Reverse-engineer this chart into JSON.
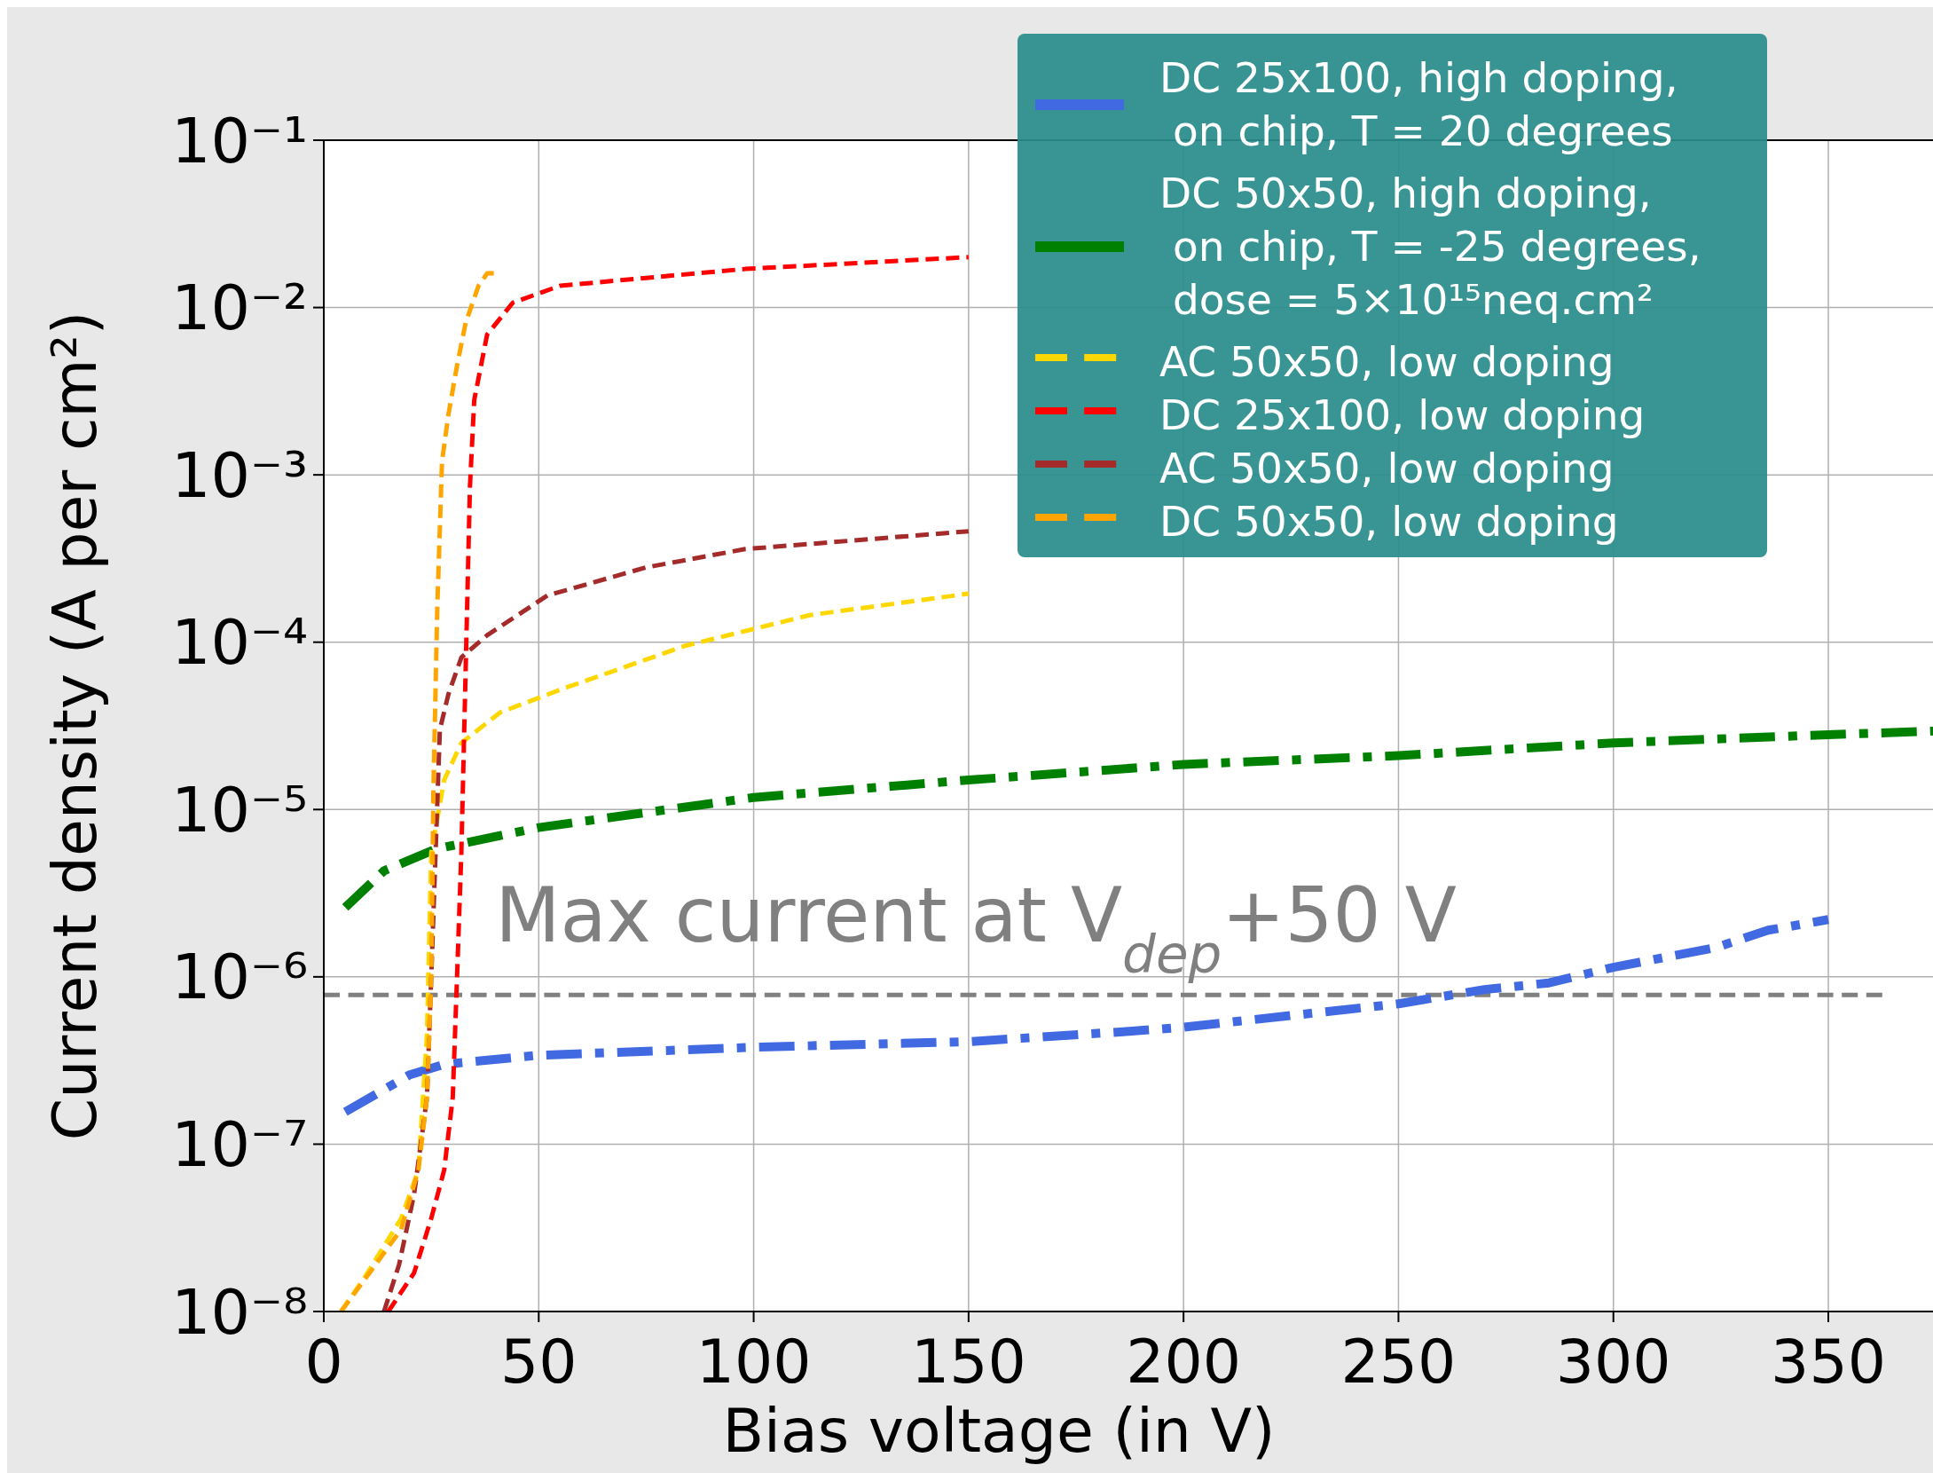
{
  "chart_data": {
    "type": "line",
    "xlabel": "Bias voltage (in V)",
    "ylabel": "Current density (A per cm²)",
    "log": "y",
    "grid": true,
    "legend": "top right",
    "xlim": [
      0,
      376
    ],
    "xticks": [
      0,
      50,
      100,
      150,
      200,
      250,
      300,
      350
    ],
    "ylim": [
      1e-08,
      0.1
    ],
    "yticks": [
      {
        "value": 1e-08,
        "label": "10⁻⁸"
      },
      {
        "value": 1e-07,
        "label": "10⁻⁷"
      },
      {
        "value": 1e-06,
        "label": "10⁻⁶"
      },
      {
        "value": 1e-05,
        "label": "10⁻⁵"
      },
      {
        "value": 0.0001,
        "label": "10⁻⁴"
      },
      {
        "value": 0.001,
        "label": "10⁻³"
      },
      {
        "value": 0.01,
        "label": "10⁻²"
      },
      {
        "value": 0.1,
        "label": "10⁻¹"
      }
    ],
    "ref_lines": [
      {
        "axis": "y",
        "value": 7.8e-07,
        "label": "Max current at V$_{dep}$+50 V",
        "color": "#808080",
        "line_style": "dashed"
      }
    ],
    "series": [
      {
        "name": "DC 25x100, high doping,\n on chip, T = 20 degrees",
        "color": "#4169e1",
        "line_style": "dashdot",
        "x": [
          5,
          20,
          28,
          50,
          101,
          150,
          186,
          200,
          250,
          270,
          285,
          300,
          324,
          336,
          350
        ],
        "values": [
          1.56e-07,
          2.6e-07,
          3e-07,
          3.4e-07,
          3.8e-07,
          4.1e-07,
          4.7e-07,
          5e-07,
          6.9e-07,
          8.4e-07,
          9.2e-07,
          1.14e-06,
          1.5e-06,
          1.9e-06,
          2.2e-06
        ]
      },
      {
        "name": "DC 50x50, high doping,\n on chip, T = -25 degrees,\n dose = 5×10¹⁵neq.cm²",
        "color": "#008000",
        "line_style": "dashdot",
        "x": [
          5,
          14,
          26,
          50,
          100,
          150,
          200,
          250,
          300,
          350,
          376
        ],
        "values": [
          2.6e-06,
          4.3e-06,
          5.8e-06,
          7.8e-06,
          1.18e-05,
          1.5e-05,
          1.86e-05,
          2.1e-05,
          2.5e-05,
          2.8e-05,
          2.95e-05
        ]
      },
      {
        "name": "AC 50x50, low doping",
        "color": "#ffd700",
        "line_style": "dashed",
        "x": [
          4,
          9.5,
          18,
          22,
          24,
          25,
          28,
          32,
          41,
          55,
          84,
          113,
          150
        ],
        "values": [
          1e-08,
          1.6e-08,
          3.6e-08,
          7e-08,
          4.5e-07,
          5.5e-06,
          1.5e-05,
          2.5e-05,
          3.8e-05,
          5.2e-05,
          9.5e-05,
          0.000145,
          0.000195
        ]
      },
      {
        "name": "DC 25x100, low doping",
        "color": "#ff0000",
        "line_style": "dashed",
        "x": [
          15,
          21,
          25,
          28,
          30,
          31,
          32,
          33,
          34,
          35,
          38,
          44,
          55,
          98,
          150
        ],
        "values": [
          1e-08,
          1.7e-08,
          3.6e-08,
          7e-08,
          1.9e-07,
          1e-06,
          5.5e-06,
          6.8e-05,
          0.00085,
          0.0028,
          0.0069,
          0.0107,
          0.0135,
          0.017,
          0.02
        ]
      },
      {
        "name": "AC 50x50, low doping",
        "color": "#a52a2a",
        "line_style": "dashed",
        "x": [
          14,
          17.5,
          21,
          24,
          25,
          26,
          27,
          29,
          32,
          38,
          52,
          75,
          98,
          150
        ],
        "values": [
          1e-08,
          1.9e-08,
          5e-08,
          1.9e-07,
          1e-06,
          5.5e-06,
          3e-05,
          4.9e-05,
          8.1e-05,
          0.00011,
          0.00019,
          0.00028,
          0.00036,
          0.00046
        ]
      },
      {
        "name": "DC 50x50, low doping",
        "color": "#ffa500",
        "line_style": "dashed",
        "x": [
          4,
          12,
          18,
          22,
          24,
          25,
          25.5,
          26.4,
          27.5,
          29,
          31,
          33,
          36,
          38,
          41
        ],
        "values": [
          1e-08,
          1.9e-08,
          3.1e-08,
          7e-08,
          1.9e-07,
          1e-06,
          1.3e-05,
          0.00016,
          0.0012,
          0.0023,
          0.0045,
          0.0081,
          0.0135,
          0.016,
          0.016
        ]
      }
    ]
  }
}
